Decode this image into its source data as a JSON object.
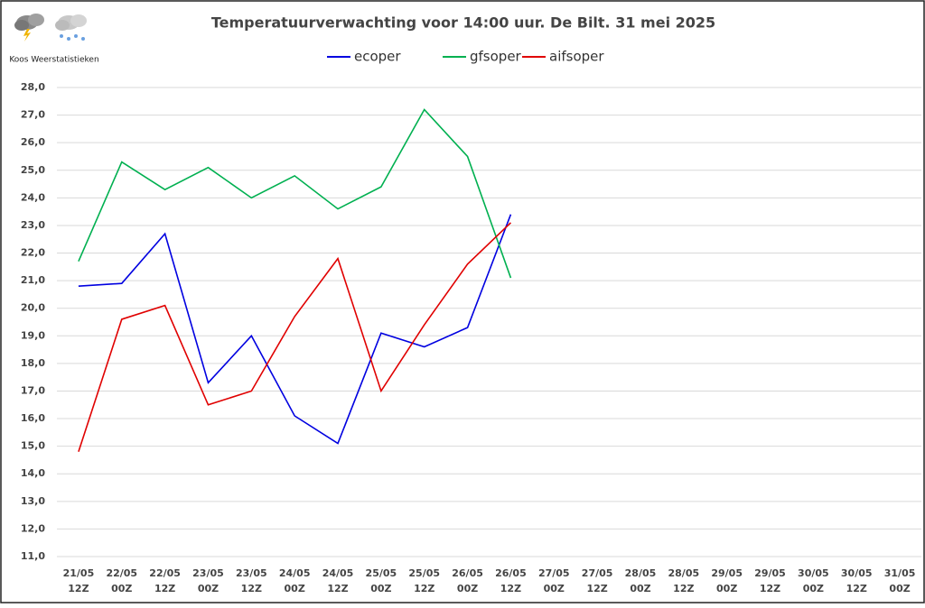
{
  "chart_data": {
    "type": "line",
    "title": "Temperatuurverwachting voor 14:00 uur. De Bilt. 31 mei 2025",
    "subtitle": "Koos Weerstatistieken",
    "categories": [
      "21/05 12Z",
      "22/05 00Z",
      "22/05 12Z",
      "23/05 00Z",
      "23/05 12Z",
      "24/05 00Z",
      "24/05 12Z",
      "25/05 00Z",
      "25/05 12Z",
      "26/05 00Z",
      "26/05 12Z",
      "27/05 00Z",
      "27/05 12Z",
      "28/05 00Z",
      "28/05 12Z",
      "29/05 00Z",
      "29/05 12Z",
      "30/05 00Z",
      "30/05 12Z",
      "31/05 00Z"
    ],
    "series": [
      {
        "name": "ecoper",
        "color": "#0000e0",
        "values": [
          20.8,
          20.9,
          22.7,
          17.3,
          19.0,
          16.1,
          15.1,
          19.1,
          18.6,
          19.3,
          23.4,
          null,
          null,
          null,
          null,
          null,
          null,
          null,
          null,
          null
        ]
      },
      {
        "name": "gfsoper",
        "color": "#00b050",
        "values": [
          21.7,
          25.3,
          24.3,
          25.1,
          24.0,
          24.8,
          23.6,
          24.4,
          27.2,
          25.5,
          21.1,
          null,
          null,
          null,
          null,
          null,
          null,
          null,
          null,
          null
        ]
      },
      {
        "name": "aifsoper",
        "color": "#e00000",
        "values": [
          14.8,
          19.6,
          20.1,
          16.5,
          17.0,
          19.7,
          21.8,
          17.0,
          19.4,
          21.6,
          23.1,
          null,
          null,
          null,
          null,
          null,
          null,
          null,
          null,
          null
        ]
      }
    ],
    "ylim": [
      11,
      28
    ],
    "yticks": [
      {
        "value": 11,
        "label": "11,0"
      },
      {
        "value": 12,
        "label": "12,0"
      },
      {
        "value": 13,
        "label": "13,0"
      },
      {
        "value": 14,
        "label": "14,0"
      },
      {
        "value": 15,
        "label": "15,0"
      },
      {
        "value": 16,
        "label": "16,0"
      },
      {
        "value": 17,
        "label": "17,0"
      },
      {
        "value": 18,
        "label": "18,0"
      },
      {
        "value": 19,
        "label": "19,0"
      },
      {
        "value": 20,
        "label": "20,0"
      },
      {
        "value": 21,
        "label": "21,0"
      },
      {
        "value": 22,
        "label": "22,0"
      },
      {
        "value": 23,
        "label": "23,0"
      },
      {
        "value": 24,
        "label": "24,0"
      },
      {
        "value": 25,
        "label": "25,0"
      },
      {
        "value": 26,
        "label": "26,0"
      },
      {
        "value": 27,
        "label": "27,0"
      },
      {
        "value": 28,
        "label": "28,0"
      }
    ],
    "grid": true,
    "legend": "top"
  }
}
